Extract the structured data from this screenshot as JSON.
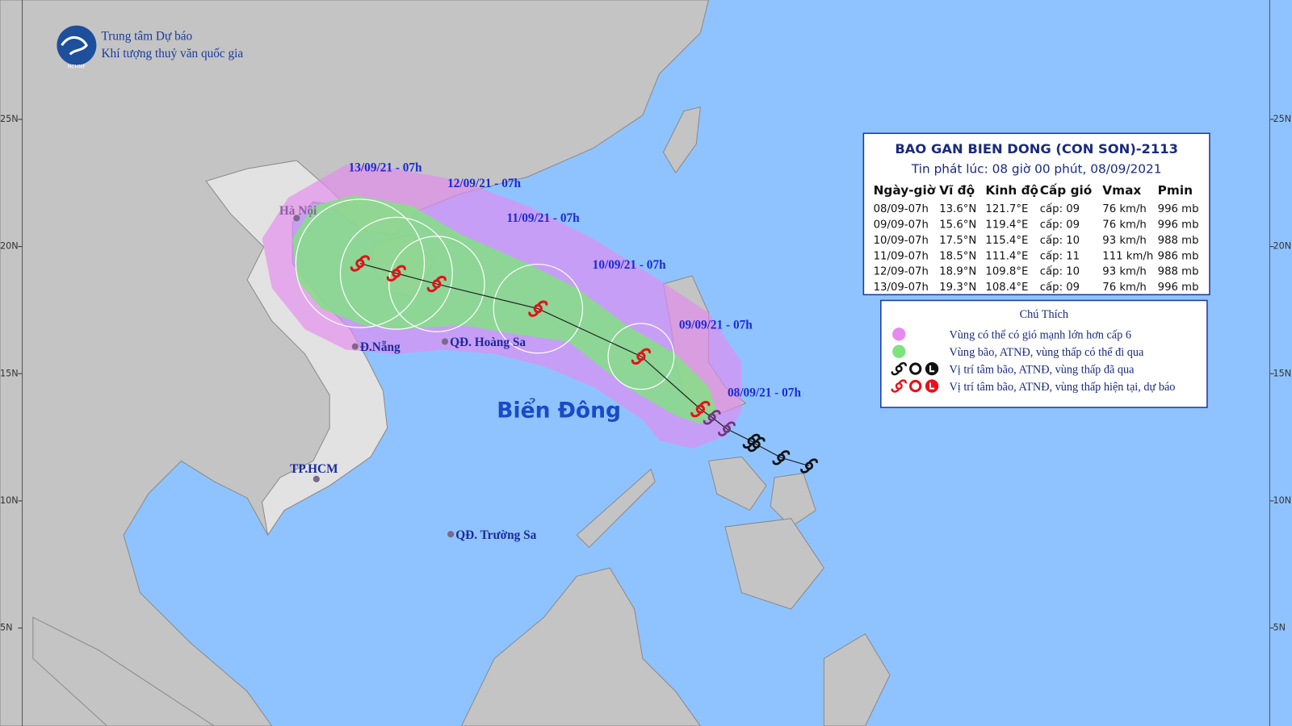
{
  "header": {
    "org_line1": "Trung tâm Dự báo",
    "org_line2": "Khí tượng thuỷ văn quốc gia",
    "logo_text": "NCHMF"
  },
  "lat_labels": [
    "25N",
    "20N",
    "15N",
    "10N",
    "5N"
  ],
  "track_labels": [
    "13/09/21 - 07h",
    "12/09/21 - 07h",
    "11/09/21 - 07h",
    "10/09/21 - 07h",
    "09/09/21 - 07h",
    "08/09/21 - 07h"
  ],
  "places": [
    "Hà Nội",
    "Đ.Nẵng",
    "QĐ. Hoàng Sa",
    "TP.HCM",
    "QĐ. Trường Sa"
  ],
  "sea_label": "Biển Đông",
  "info_box": {
    "title": "BAO GAN BIEN DONG (CON SON)-2113",
    "subtitle": "Tin phát lúc: 08 giờ 00 phút, 08/09/2021",
    "columns": [
      "Ngày-giờ",
      "Vĩ độ",
      "Kinh độ",
      "Cấp gió",
      "Vmax",
      "Pmin"
    ],
    "rows": [
      [
        "08/09-07h",
        "13.6°N",
        "121.7°E",
        "cấp: 09",
        "76 km/h",
        "996 mb"
      ],
      [
        "09/09-07h",
        "15.6°N",
        "119.4°E",
        "cấp: 09",
        "76 km/h",
        "996 mb"
      ],
      [
        "10/09-07h",
        "17.5°N",
        "115.4°E",
        "cấp: 10",
        "93 km/h",
        "988 mb"
      ],
      [
        "11/09-07h",
        "18.5°N",
        "111.4°E",
        "cấp: 11",
        "111 km/h",
        "986 mb"
      ],
      [
        "12/09-07h",
        "18.9°N",
        "109.8°E",
        "cấp: 10",
        "93 km/h",
        "988 mb"
      ],
      [
        "13/09-07h",
        "19.3°N",
        "108.4°E",
        "cấp: 09",
        "76 km/h",
        "996 mb"
      ]
    ]
  },
  "legend": {
    "title": "Chú Thích",
    "items": [
      "Vùng có thể có gió mạnh lớn hơn cấp 6",
      "Vùng bão, ATNĐ, vùng thấp có thể đi qua",
      "Vị trí tâm bão, ATNĐ, vùng thấp đã qua",
      "Vị trí tâm bão, ATNĐ, vùng thấp hiện tại, dự báo"
    ]
  }
}
